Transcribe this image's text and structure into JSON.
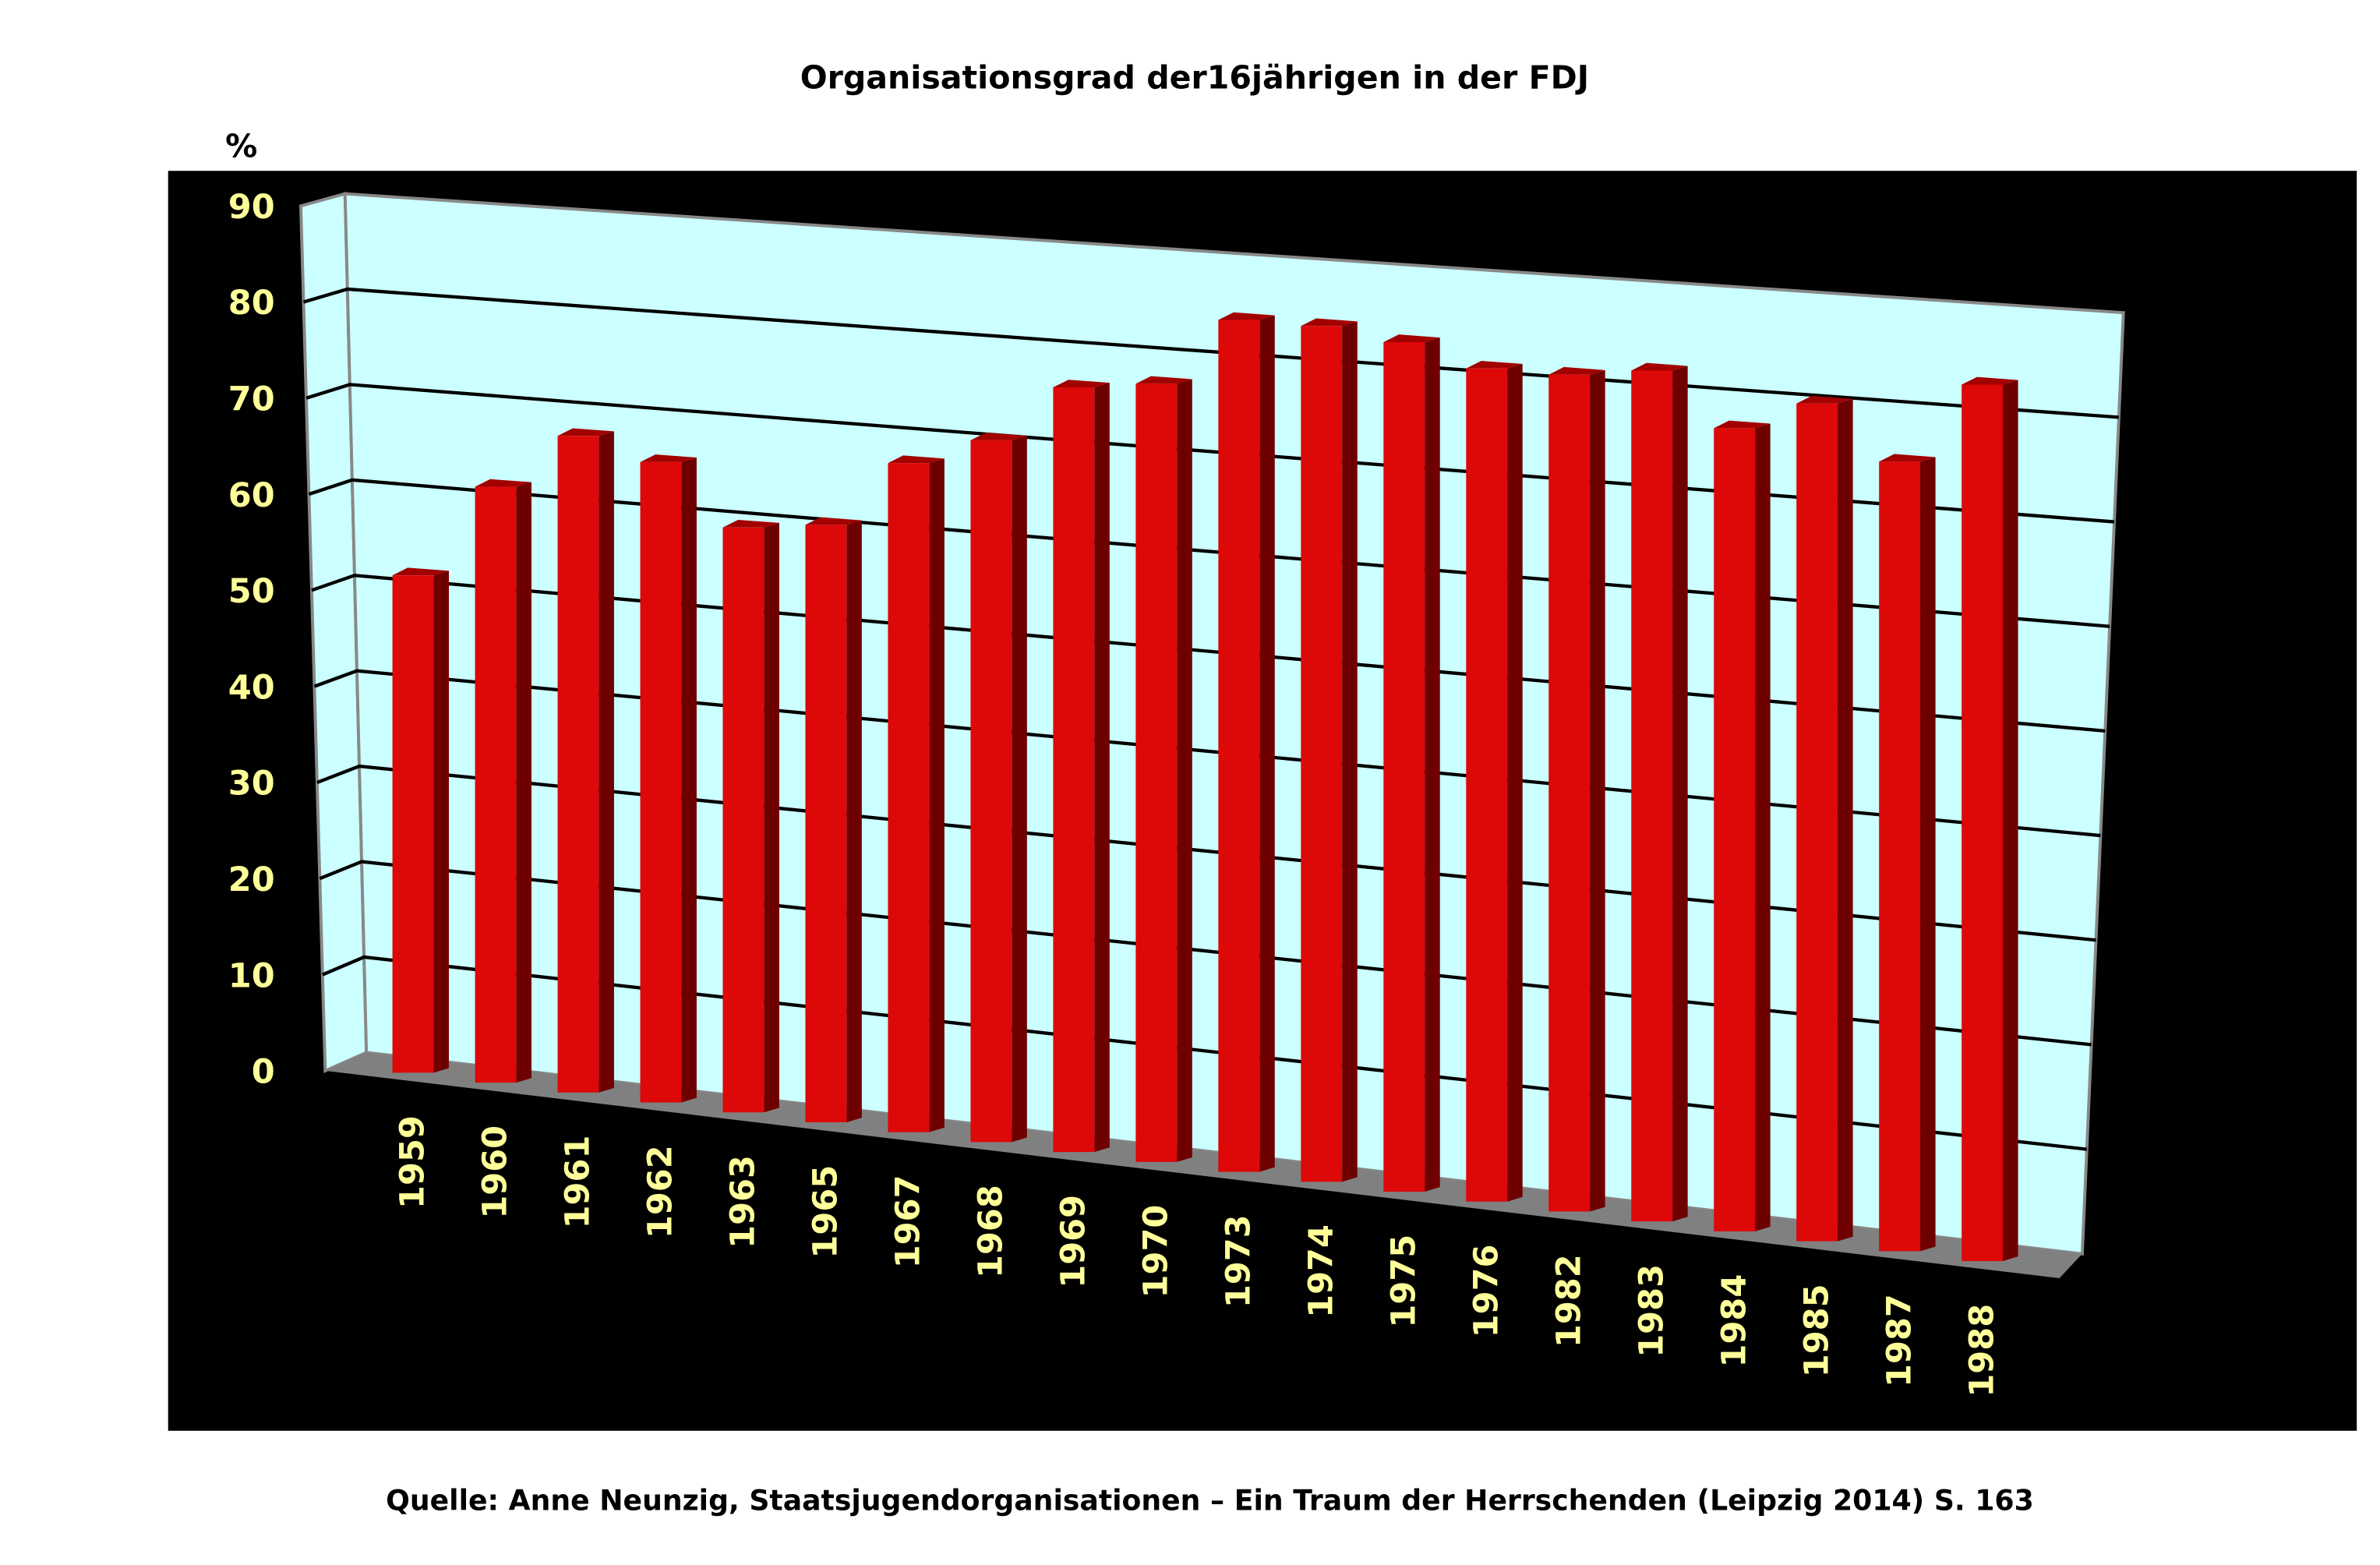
{
  "chart_data": {
    "type": "bar",
    "style": "3d-column",
    "title": "Organisationsgrad der16jährigen in der FDJ",
    "ylabel": "%",
    "xlabel": "",
    "ylim": [
      0,
      90
    ],
    "yticks": [
      0,
      10,
      20,
      30,
      40,
      50,
      60,
      70,
      80,
      90
    ],
    "grid": true,
    "categories": [
      "1959",
      "1960",
      "1961",
      "1962",
      "1963",
      "1965",
      "1967",
      "1968",
      "1969",
      "1970",
      "1973",
      "1974",
      "1975",
      "1976",
      "1982",
      "1983",
      "1984",
      "1985",
      "1987",
      "1988"
    ],
    "values": [
      52,
      62,
      68,
      66,
      60,
      61,
      68,
      71,
      77,
      78,
      85,
      85,
      84,
      82,
      82,
      83,
      78,
      81,
      76,
      84
    ],
    "source": "Quelle: Anne Neunzig, Staatsjugendorganisationen – Ein Traum der Herrschenden (Leipzig 2014) S. 163",
    "colors": {
      "bar": "#dd0808",
      "bar_side": "#6e0000",
      "bar_top": "#a30000",
      "wall": "#ccffff",
      "floor": "#808080",
      "background": "#000000",
      "tick_label": "#ffff99"
    }
  }
}
